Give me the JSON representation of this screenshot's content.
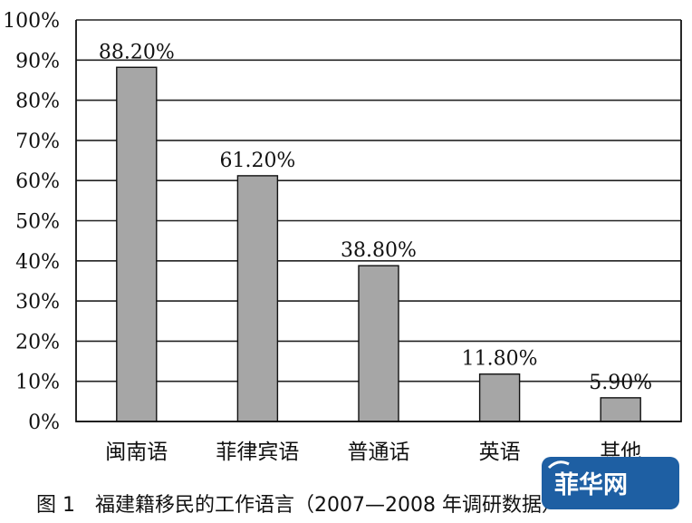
{
  "chart_data": {
    "type": "bar",
    "categories": [
      "闽南语",
      "菲律宾语",
      "普通话",
      "英语",
      "其他"
    ],
    "values": [
      88.2,
      61.2,
      38.8,
      11.8,
      5.9
    ],
    "data_labels": [
      "88.20%",
      "61.20%",
      "38.80%",
      "11.80%",
      "5.90%"
    ],
    "y_ticks": [
      "0%",
      "10%",
      "20%",
      "30%",
      "40%",
      "50%",
      "60%",
      "70%",
      "80%",
      "90%",
      "100%"
    ],
    "ylim": [
      0,
      100
    ],
    "grid": true,
    "title": "",
    "xlabel": "",
    "ylabel": ""
  },
  "caption": "图 1　福建籍移民的工作语言（2007—2008 年调研数据）",
  "watermark": {
    "text": "菲华网",
    "color": "#1e5fa3"
  },
  "colors": {
    "bar": "#a6a6a6",
    "grid": "#222222"
  }
}
